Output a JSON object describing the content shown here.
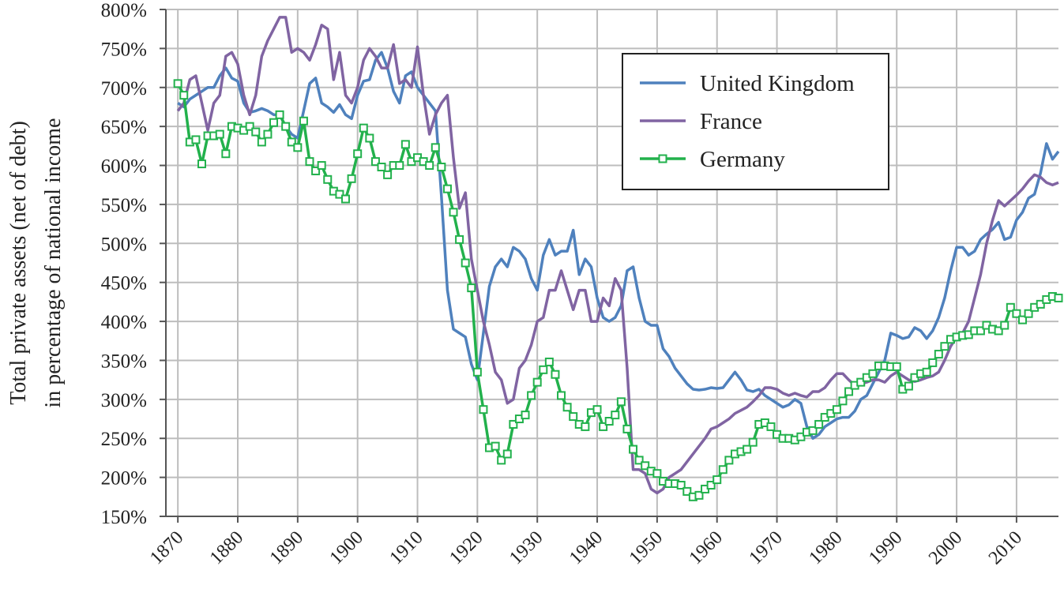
{
  "chart_data": {
    "type": "line",
    "ylabel": [
      "Total private assets (net of debt)",
      "in percentage of national income"
    ],
    "x": [
      1870,
      1871,
      1872,
      1873,
      1874,
      1875,
      1876,
      1877,
      1878,
      1879,
      1880,
      1881,
      1882,
      1883,
      1884,
      1885,
      1886,
      1887,
      1888,
      1889,
      1890,
      1891,
      1892,
      1893,
      1894,
      1895,
      1896,
      1897,
      1898,
      1899,
      1900,
      1901,
      1902,
      1903,
      1904,
      1905,
      1906,
      1907,
      1908,
      1909,
      1910,
      1911,
      1912,
      1913,
      1914,
      1915,
      1916,
      1917,
      1918,
      1919,
      1920,
      1921,
      1922,
      1923,
      1924,
      1925,
      1926,
      1927,
      1928,
      1929,
      1930,
      1931,
      1932,
      1933,
      1934,
      1935,
      1936,
      1937,
      1938,
      1939,
      1940,
      1941,
      1942,
      1943,
      1944,
      1945,
      1946,
      1947,
      1948,
      1949,
      1950,
      1951,
      1952,
      1953,
      1954,
      1955,
      1956,
      1957,
      1958,
      1959,
      1960,
      1961,
      1962,
      1963,
      1964,
      1965,
      1966,
      1967,
      1968,
      1969,
      1970,
      1971,
      1972,
      1973,
      1974,
      1975,
      1976,
      1977,
      1978,
      1979,
      1980,
      1981,
      1982,
      1983,
      1984,
      1985,
      1986,
      1987,
      1988,
      1989,
      1990,
      1991,
      1992,
      1993,
      1994,
      1995,
      1996,
      1997,
      1998,
      1999,
      2000,
      2001,
      2002,
      2003,
      2004,
      2005,
      2006,
      2007,
      2008,
      2009,
      2010,
      2011,
      2012,
      2013,
      2014,
      2015,
      2016,
      2017
    ],
    "series": [
      {
        "name": "United Kingdom",
        "color": "#4f81bd",
        "marker": false,
        "values": [
          680,
          675,
          685,
          690,
          695,
          700,
          700,
          715,
          725,
          712,
          708,
          680,
          668,
          670,
          673,
          670,
          665,
          665,
          650,
          640,
          635,
          670,
          705,
          712,
          680,
          675,
          668,
          678,
          665,
          660,
          690,
          708,
          710,
          735,
          745,
          725,
          695,
          680,
          715,
          720,
          700,
          690,
          680,
          670,
          560,
          440,
          390,
          385,
          380,
          345,
          325,
          385,
          445,
          470,
          480,
          470,
          495,
          490,
          480,
          455,
          440,
          485,
          505,
          485,
          490,
          490,
          517,
          460,
          480,
          470,
          430,
          405,
          400,
          405,
          420,
          465,
          470,
          430,
          400,
          395,
          395,
          365,
          355,
          340,
          330,
          320,
          313,
          312,
          313,
          315,
          314,
          315,
          325,
          335,
          325,
          312,
          310,
          313,
          305,
          300,
          295,
          290,
          293,
          300,
          295,
          265,
          250,
          255,
          265,
          270,
          275,
          277,
          277,
          285,
          300,
          305,
          320,
          335,
          350,
          385,
          382,
          378,
          380,
          392,
          388,
          378,
          388,
          405,
          430,
          465,
          495,
          495,
          485,
          490,
          505,
          512,
          518,
          527,
          505,
          508,
          530,
          540,
          558,
          563,
          590,
          628,
          608,
          618
        ]
      },
      {
        "name": "France",
        "color": "#8064a2",
        "marker": false,
        "values": [
          670,
          680,
          710,
          715,
          680,
          645,
          680,
          690,
          740,
          745,
          730,
          690,
          665,
          690,
          740,
          760,
          775,
          790,
          790,
          745,
          750,
          745,
          735,
          755,
          780,
          775,
          710,
          745,
          690,
          680,
          700,
          735,
          750,
          740,
          725,
          725,
          755,
          705,
          710,
          700,
          752,
          690,
          640,
          665,
          680,
          690,
          610,
          545,
          565,
          480,
          440,
          400,
          370,
          335,
          325,
          295,
          300,
          340,
          350,
          370,
          400,
          405,
          440,
          440,
          465,
          440,
          415,
          440,
          440,
          400,
          400,
          430,
          420,
          455,
          440,
          340,
          210,
          210,
          205,
          185,
          180,
          185,
          200,
          205,
          210,
          220,
          230,
          240,
          250,
          262,
          265,
          270,
          275,
          282,
          286,
          290,
          297,
          305,
          315,
          315,
          313,
          308,
          305,
          308,
          305,
          303,
          310,
          310,
          315,
          325,
          333,
          333,
          325,
          318,
          320,
          322,
          325,
          325,
          322,
          330,
          335,
          330,
          325,
          323,
          325,
          328,
          330,
          335,
          350,
          368,
          380,
          385,
          400,
          430,
          460,
          500,
          530,
          555,
          548,
          555,
          562,
          570,
          580,
          588,
          585,
          578,
          575,
          578
        ]
      },
      {
        "name": "Germany",
        "color": "#22b14c",
        "marker": true,
        "values": [
          705,
          690,
          630,
          633,
          602,
          638,
          638,
          640,
          615,
          650,
          648,
          645,
          650,
          643,
          630,
          640,
          655,
          665,
          650,
          630,
          623,
          657,
          605,
          593,
          600,
          582,
          567,
          563,
          557,
          583,
          615,
          648,
          635,
          605,
          598,
          588,
          600,
          600,
          627,
          605,
          610,
          605,
          600,
          623,
          598,
          570,
          540,
          505,
          475,
          443,
          335,
          287,
          238,
          240,
          222,
          230,
          268,
          275,
          280,
          305,
          322,
          338,
          348,
          332,
          305,
          290,
          278,
          268,
          265,
          283,
          287,
          265,
          272,
          280,
          297,
          262,
          236,
          222,
          215,
          208,
          205,
          195,
          192,
          192,
          190,
          182,
          175,
          177,
          185,
          190,
          197,
          210,
          222,
          230,
          233,
          236,
          245,
          268,
          270,
          265,
          255,
          250,
          250,
          248,
          252,
          258,
          260,
          268,
          277,
          282,
          287,
          298,
          310,
          318,
          322,
          328,
          333,
          343,
          343,
          342,
          342,
          313,
          317,
          328,
          333,
          335,
          347,
          358,
          368,
          377,
          380,
          382,
          383,
          388,
          388,
          395,
          390,
          388,
          395,
          418,
          410,
          402,
          410,
          418,
          422,
          428,
          432,
          430
        ]
      }
    ],
    "xlim": [
      1868,
      2017
    ],
    "xticks": [
      1870,
      1880,
      1890,
      1900,
      1910,
      1920,
      1930,
      1940,
      1950,
      1960,
      1970,
      1980,
      1990,
      2000,
      2010
    ],
    "ylim": [
      150,
      800
    ],
    "yticks": [
      {
        "value": 150,
        "label": "150%"
      },
      {
        "value": 200,
        "label": "200%"
      },
      {
        "value": 250,
        "label": "250%"
      },
      {
        "value": 300,
        "label": "300%"
      },
      {
        "value": 350,
        "label": "350%"
      },
      {
        "value": 400,
        "label": "400%"
      },
      {
        "value": 450,
        "label": "450%"
      },
      {
        "value": 500,
        "label": "500%"
      },
      {
        "value": 550,
        "label": "550%"
      },
      {
        "value": 600,
        "label": "600%"
      },
      {
        "value": 650,
        "label": "650%"
      },
      {
        "value": 700,
        "label": "700%"
      },
      {
        "value": 750,
        "label": "750%"
      },
      {
        "value": 800,
        "label": "800%"
      }
    ],
    "grid": true,
    "legend": "upper right"
  }
}
